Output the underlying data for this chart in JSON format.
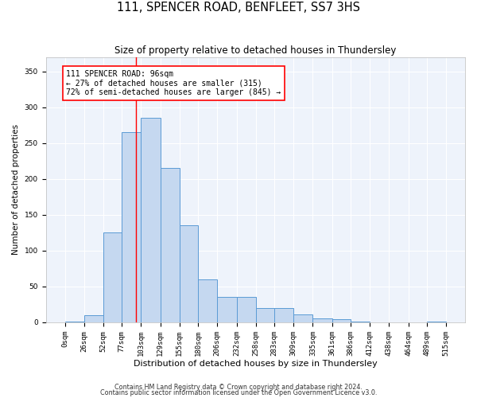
{
  "title": "111, SPENCER ROAD, BENFLEET, SS7 3HS",
  "subtitle": "Size of property relative to detached houses in Thundersley",
  "xlabel": "Distribution of detached houses by size in Thundersley",
  "ylabel": "Number of detached properties",
  "bar_color": "#c5d8f0",
  "bar_edge_color": "#5b9bd5",
  "background_color": "#eef3fb",
  "grid_color": "#ffffff",
  "annotation_line1": "111 SPENCER ROAD: 96sqm",
  "annotation_line2": "← 27% of detached houses are smaller (315)",
  "annotation_line3": "72% of semi-detached houses are larger (845) →",
  "red_line_x": 96,
  "bin_edges": [
    0,
    26,
    52,
    77,
    103,
    129,
    155,
    180,
    206,
    232,
    258,
    283,
    309,
    335,
    361,
    386,
    412,
    438,
    464,
    489,
    515
  ],
  "bar_heights": [
    1,
    10,
    125,
    265,
    285,
    215,
    135,
    60,
    35,
    35,
    20,
    20,
    11,
    5,
    4,
    1,
    0,
    0,
    0,
    1
  ],
  "ylim": [
    0,
    370
  ],
  "yticks": [
    0,
    50,
    100,
    150,
    200,
    250,
    300,
    350
  ],
  "footer_line1": "Contains HM Land Registry data © Crown copyright and database right 2024.",
  "footer_line2": "Contains public sector information licensed under the Open Government Licence v3.0.",
  "title_fontsize": 10.5,
  "subtitle_fontsize": 8.5,
  "xlabel_fontsize": 8,
  "ylabel_fontsize": 7.5,
  "tick_labelsize": 6.5,
  "annotation_fontsize": 7,
  "footer_fontsize": 5.8
}
